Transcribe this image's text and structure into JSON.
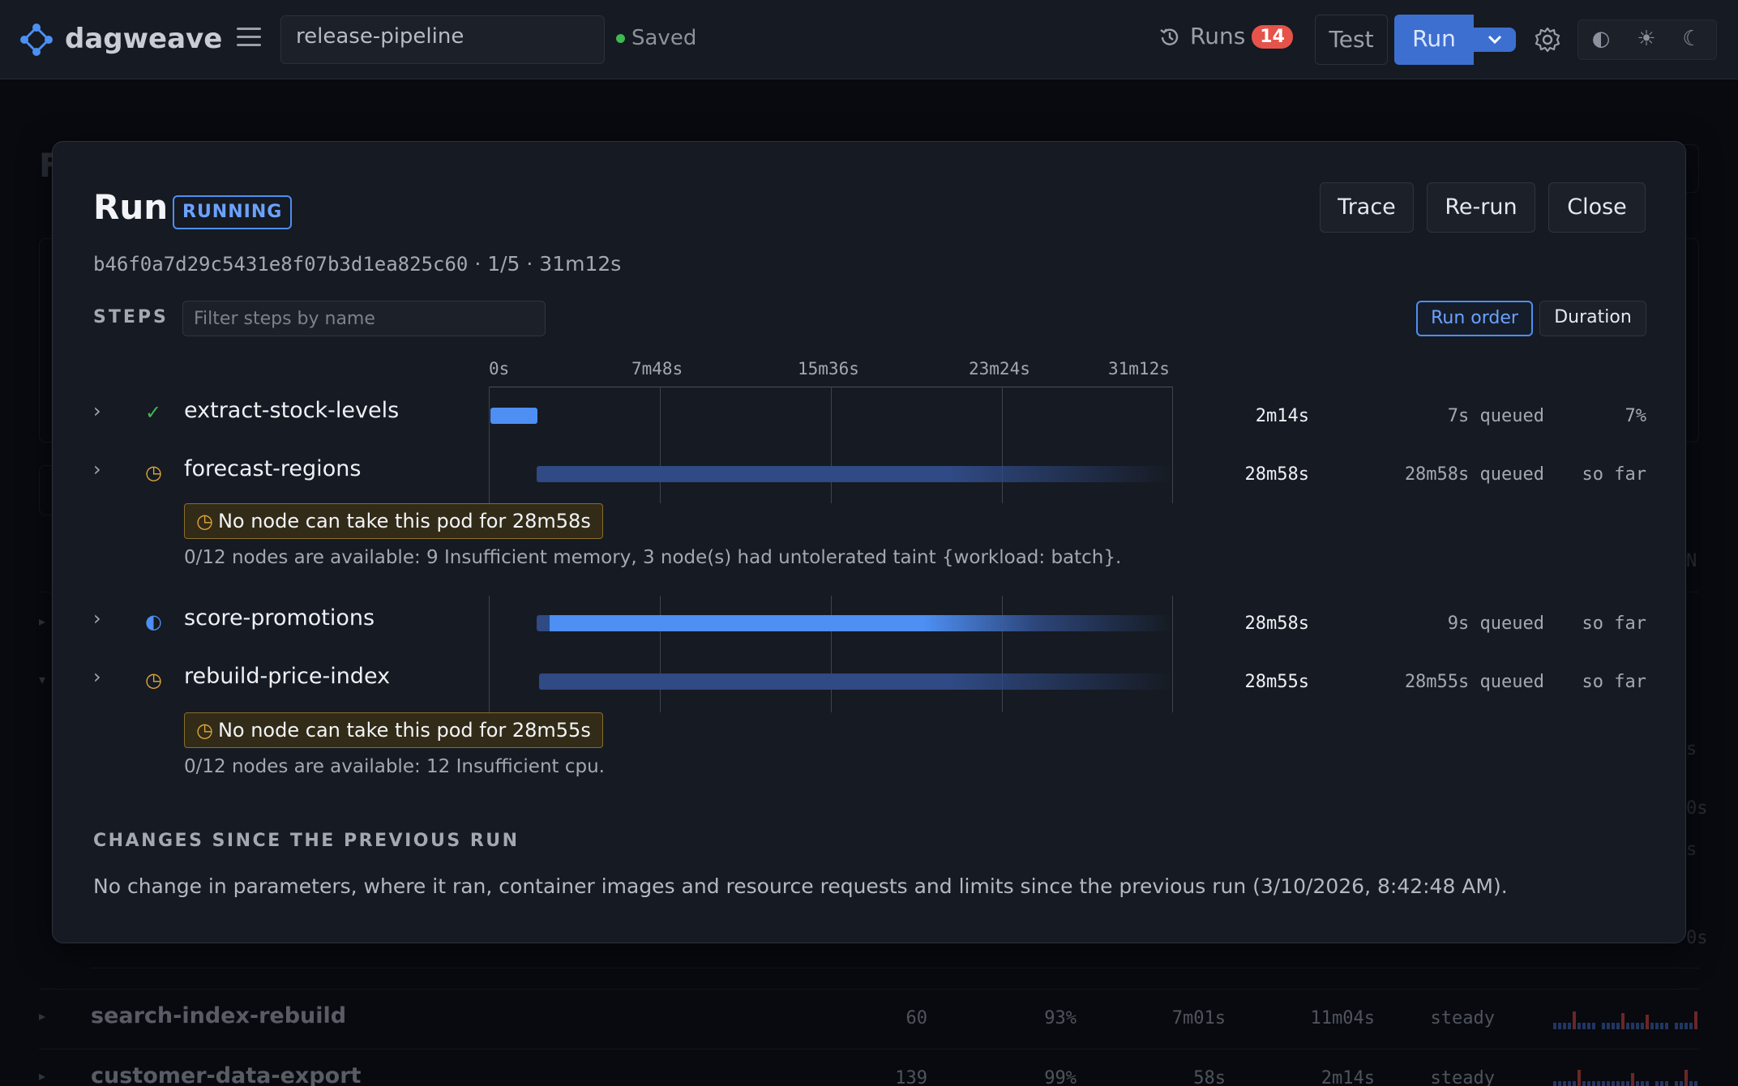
{
  "header": {
    "brand": "dagweave",
    "pipeline_name": "release-pipeline",
    "saved_label": "Saved",
    "runs_label": "Runs",
    "runs_count": "14",
    "test_label": "Test",
    "run_label": "Run",
    "theme_icons": [
      "◐",
      "☀",
      "☾"
    ]
  },
  "background": {
    "title_fragment": "F",
    "column_fragment": "N",
    "right_fragments": [
      "s",
      "0s",
      "s",
      "0s"
    ],
    "rows": [
      {
        "name": "search-index-rebuild",
        "runs": "60",
        "success": "93%",
        "p50": "7m01s",
        "p95": "11m04s",
        "trend": "steady"
      },
      {
        "name": "customer-data-export",
        "runs": "139",
        "success": "99%",
        "p50": "58s",
        "p95": "2m14s",
        "trend": "steady"
      }
    ]
  },
  "modal": {
    "title": "Run",
    "status": "RUNNING",
    "buttons": {
      "trace": "Trace",
      "rerun": "Re-run",
      "close": "Close"
    },
    "run_id": "b46f0a7d29c5431e8f07b3d1ea825c60",
    "meta_rest": " · 1/5 · 31m12s",
    "steps_label": "STEPS",
    "filter_placeholder": "Filter steps by name",
    "sort": {
      "run_order": "Run order",
      "duration": "Duration"
    },
    "ticks": [
      "0s",
      "7m48s",
      "15m36s",
      "23m24s",
      "31m12s"
    ],
    "steps": [
      {
        "name": "extract-stock-levels",
        "status": "succeeded",
        "icon": "check-icon",
        "glyph": "✓",
        "duration": "2m14s",
        "queued": "7s queued",
        "share": "7%"
      },
      {
        "name": "forecast-regions",
        "status": "pending",
        "icon": "clock-icon",
        "glyph": "◷",
        "duration": "28m58s",
        "queued": "28m58s queued",
        "share": "so far",
        "warning": "No node can take this pod for 28m58s",
        "detail": "0/12 nodes are available: 9 Insufficient memory, 3 node(s) had untolerated taint {workload: batch}."
      },
      {
        "name": "score-promotions",
        "status": "running",
        "icon": "half-circle-icon",
        "glyph": "◐",
        "duration": "28m58s",
        "queued": "9s queued",
        "share": "so far"
      },
      {
        "name": "rebuild-price-index",
        "status": "pending",
        "icon": "clock-icon",
        "glyph": "◷",
        "duration": "28m55s",
        "queued": "28m55s queued",
        "share": "so far",
        "warning": "No node can take this pod for 28m55s",
        "detail": "0/12 nodes are available: 12 Insufficient cpu."
      }
    ],
    "changes_heading": "CHANGES SINCE THE PREVIOUS RUN",
    "changes_text": "No change in parameters, where it ran, container images and resource requests and limits since the previous run (3/10/2026, 8:42:48 AM)."
  },
  "colors": {
    "accent": "#3d6fd1",
    "bar_active": "#4d8ff2",
    "bar_queued": "#2f4a84",
    "warning": "#e0a83a",
    "success": "#3fb950",
    "danger": "#e5534b"
  }
}
